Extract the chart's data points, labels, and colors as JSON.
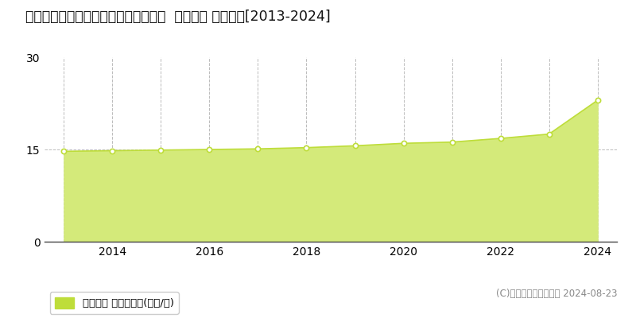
{
  "title": "宮城県名取市飯野坂６丁目３１５番外  地価公示 地価推移[2013-2024]",
  "years": [
    2013,
    2014,
    2015,
    2016,
    2017,
    2018,
    2019,
    2020,
    2021,
    2022,
    2023,
    2024
  ],
  "values": [
    14.7,
    14.8,
    14.9,
    15.0,
    15.1,
    15.3,
    15.6,
    16.0,
    16.2,
    16.8,
    17.5,
    23.0
  ],
  "line_color": "#bedd3a",
  "fill_color": "#d4ea7a",
  "marker_color": "#ffffff",
  "marker_edge_color": "#bedd3a",
  "bg_color": "#ffffff",
  "plot_bg_color": "#ffffff",
  "grid_color": "#bbbbbb",
  "yticks": [
    0,
    15,
    30
  ],
  "ylim": [
    0,
    30
  ],
  "xlim": [
    2012.6,
    2024.4
  ],
  "xticks": [
    2014,
    2016,
    2018,
    2020,
    2022,
    2024
  ],
  "legend_label": "地価公示 平均坪単価(万円/坪)",
  "legend_color": "#bedd3a",
  "copyright_text": "(C)土地価格ドットコム 2024-08-23",
  "title_fontsize": 12.5,
  "tick_fontsize": 10,
  "legend_fontsize": 9.5,
  "copyright_fontsize": 8.5
}
